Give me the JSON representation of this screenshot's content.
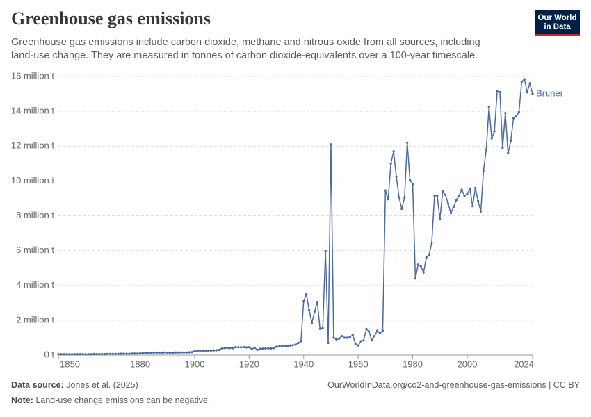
{
  "chart_data": {
    "type": "line",
    "title": "Greenhouse gas emissions",
    "subtitle": "Greenhouse gas emissions include carbon dioxide, methane and nitrous oxide from all sources, including land-use change. They are measured in tonnes of carbon dioxide-equivalents over a 100-year timescale.",
    "logo": [
      "Our World",
      "in Data"
    ],
    "source_label": "Data source:",
    "source": "Jones et al. (2025)",
    "url_license": "OurWorldInData.org/co2-and-greenhouse-gas-emissions | CC BY",
    "note_label": "Note:",
    "note": "Land-use change emissions can be negative.",
    "x": [
      1850,
      1851,
      1852,
      1853,
      1854,
      1855,
      1856,
      1857,
      1858,
      1859,
      1860,
      1861,
      1862,
      1863,
      1864,
      1865,
      1866,
      1867,
      1868,
      1869,
      1870,
      1871,
      1872,
      1873,
      1874,
      1875,
      1876,
      1877,
      1878,
      1879,
      1880,
      1881,
      1882,
      1883,
      1884,
      1885,
      1886,
      1887,
      1888,
      1889,
      1890,
      1891,
      1892,
      1893,
      1894,
      1895,
      1896,
      1897,
      1898,
      1899,
      1900,
      1901,
      1902,
      1903,
      1904,
      1905,
      1906,
      1907,
      1908,
      1909,
      1910,
      1911,
      1912,
      1913,
      1914,
      1915,
      1916,
      1917,
      1918,
      1919,
      1920,
      1921,
      1922,
      1923,
      1924,
      1925,
      1926,
      1927,
      1928,
      1929,
      1930,
      1931,
      1932,
      1933,
      1934,
      1935,
      1936,
      1937,
      1938,
      1939,
      1940,
      1941,
      1942,
      1943,
      1944,
      1945,
      1946,
      1947,
      1948,
      1949,
      1950,
      1951,
      1952,
      1953,
      1954,
      1955,
      1956,
      1957,
      1958,
      1959,
      1960,
      1961,
      1962,
      1963,
      1964,
      1965,
      1966,
      1967,
      1968,
      1969,
      1970,
      1971,
      1972,
      1973,
      1974,
      1975,
      1976,
      1977,
      1978,
      1979,
      1980,
      1981,
      1982,
      1983,
      1984,
      1985,
      1986,
      1987,
      1988,
      1989,
      1990,
      1991,
      1992,
      1993,
      1994,
      1995,
      1996,
      1997,
      1998,
      1999,
      2000,
      2001,
      2002,
      2003,
      2004,
      2005,
      2006,
      2007,
      2008,
      2009,
      2010,
      2011,
      2012,
      2013,
      2014,
      2015,
      2016,
      2017,
      2018,
      2019,
      2020,
      2021,
      2022,
      2023,
      2024
    ],
    "series": [
      {
        "name": "Brunei",
        "color": "#4c6a9c",
        "values": [
          50000,
          50000,
          50000,
          50000,
          50000,
          50000,
          50000,
          50000,
          50000,
          50000,
          50000,
          50000,
          50000,
          60000,
          60000,
          60000,
          60000,
          60000,
          70000,
          70000,
          70000,
          70000,
          70000,
          80000,
          80000,
          80000,
          80000,
          90000,
          90000,
          90000,
          100000,
          120000,
          130000,
          130000,
          130000,
          140000,
          140000,
          140000,
          130000,
          150000,
          140000,
          130000,
          130000,
          150000,
          150000,
          150000,
          150000,
          150000,
          160000,
          170000,
          230000,
          240000,
          250000,
          250000,
          260000,
          260000,
          260000,
          270000,
          280000,
          300000,
          380000,
          400000,
          410000,
          410000,
          400000,
          460000,
          450000,
          450000,
          460000,
          440000,
          450000,
          350000,
          420000,
          300000,
          360000,
          370000,
          380000,
          390000,
          380000,
          400000,
          480000,
          500000,
          520000,
          530000,
          520000,
          550000,
          570000,
          600000,
          700000,
          800000,
          3100000,
          3500000,
          2600000,
          1850000,
          2500000,
          3050000,
          1500000,
          1550000,
          6000000,
          700000,
          12100000,
          1000000,
          900000,
          950000,
          1100000,
          1000000,
          1000000,
          1050000,
          1150000,
          650000,
          550000,
          800000,
          850000,
          1500000,
          1350000,
          850000,
          1100000,
          1400000,
          1250000,
          1400000,
          9450000,
          8950000,
          11000000,
          11700000,
          10250000,
          9050000,
          8400000,
          9050000,
          12200000,
          10050000,
          9800000,
          4400000,
          5200000,
          5100000,
          4750000,
          5600000,
          5750000,
          6450000,
          9150000,
          9150000,
          7800000,
          9400000,
          9200000,
          8700000,
          8150000,
          8500000,
          8900000,
          9150000,
          9500000,
          9150000,
          9250000,
          9550000,
          8550000,
          9600000,
          8850000,
          8250000,
          10600000,
          11800000,
          14250000,
          12450000,
          12850000,
          15150000,
          15100000,
          11900000,
          13900000,
          11600000,
          12300000,
          13600000,
          13700000,
          13950000,
          15700000,
          15850000,
          15100000,
          15600000,
          15000000
        ]
      }
    ],
    "xlim": [
      1850,
      2024
    ],
    "xticks": [
      1850,
      1880,
      1900,
      1920,
      1940,
      1960,
      1980,
      2000,
      2024
    ],
    "ylim": [
      0,
      16000000
    ],
    "yticks": [
      {
        "value": 0,
        "label": "0 t"
      },
      {
        "value": 2000000,
        "label": "2 million t"
      },
      {
        "value": 4000000,
        "label": "4 million t"
      },
      {
        "value": 6000000,
        "label": "6 million t"
      },
      {
        "value": 8000000,
        "label": "8 million t"
      },
      {
        "value": 10000000,
        "label": "10 million t"
      },
      {
        "value": 12000000,
        "label": "12 million t"
      },
      {
        "value": 14000000,
        "label": "14 million t"
      },
      {
        "value": 16000000,
        "label": "16 million t"
      }
    ],
    "grid": true
  }
}
